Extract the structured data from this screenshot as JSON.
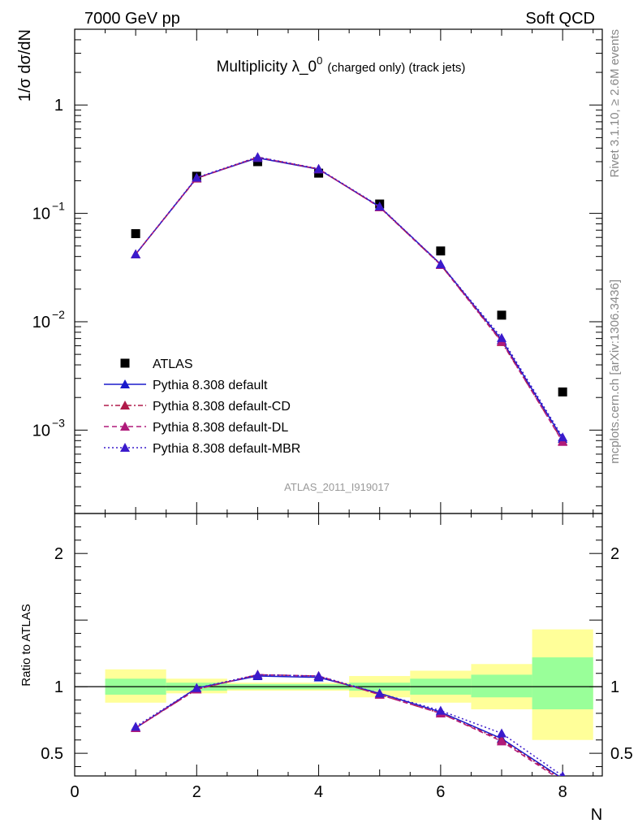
{
  "header": {
    "energy_label": "7000 GeV pp",
    "process_label": "Soft QCD"
  },
  "side_labels": {
    "rivet": "Rivet 3.1.10, ≥ 2.6M events",
    "source": "mcplots.cern.ch [arXiv:1306.3436]"
  },
  "chart_data": [
    {
      "type": "scatter",
      "title_main": "Multiplicity λ_0",
      "title_sup": "0",
      "title_sub": "(charged only) (track jets)",
      "ylabel": "1/σ dσ/dN",
      "y_scale": "log",
      "ylim": [
        0.00017,
        5.0
      ],
      "xlim": [
        0,
        8.65
      ],
      "watermark": "ATLAS_2011_I919017",
      "x": [
        1,
        2,
        3,
        4,
        5,
        6,
        7,
        8
      ],
      "legend_position": "lower-left",
      "series": [
        {
          "name": "ATLAS",
          "color": "#000000",
          "style": "marker-square",
          "values": [
            0.065,
            0.22,
            0.3,
            0.235,
            0.122,
            0.045,
            0.0115,
            0.00225
          ]
        },
        {
          "name": "Pythia 8.308 default",
          "color": "#1a1acc",
          "style": "solid",
          "values": [
            0.042,
            0.212,
            0.325,
            0.255,
            0.115,
            0.034,
            0.0068,
            0.00083
          ]
        },
        {
          "name": "Pythia 8.308 default-CD",
          "color": "#b01a4a",
          "style": "dashdot",
          "values": [
            0.042,
            0.21,
            0.33,
            0.257,
            0.114,
            0.0335,
            0.0065,
            0.00079
          ]
        },
        {
          "name": "Pythia 8.308 default-DL",
          "color": "#b01a7a",
          "style": "dashed",
          "values": [
            0.042,
            0.212,
            0.329,
            0.256,
            0.114,
            0.0335,
            0.0066,
            0.00078
          ]
        },
        {
          "name": "Pythia 8.308 default-MBR",
          "color": "#3a1acc",
          "style": "dotted",
          "values": [
            0.042,
            0.214,
            0.331,
            0.258,
            0.116,
            0.034,
            0.0071,
            0.00086
          ]
        }
      ],
      "y_tick_labels": [
        "10",
        "10",
        "10",
        "1"
      ],
      "y_tick_exponents": [
        "−3",
        "−2",
        "−1",
        ""
      ]
    },
    {
      "type": "line",
      "ylabel": "Ratio to ATLAS",
      "xlabel": "N",
      "ylim": [
        0.33,
        2.3
      ],
      "xlim": [
        0,
        8.65
      ],
      "x_tick_labels": [
        "0",
        "2",
        "4",
        "6",
        "8"
      ],
      "y_tick_labels": [
        "0.5",
        "1",
        "2"
      ],
      "reference_line": 1,
      "bands": {
        "bins": [
          [
            0.5,
            1.5
          ],
          [
            1.5,
            2.5
          ],
          [
            2.5,
            3.5
          ],
          [
            3.5,
            4.5
          ],
          [
            4.5,
            5.5
          ],
          [
            5.5,
            6.5
          ],
          [
            6.5,
            7.5
          ],
          [
            7.5,
            8.5
          ]
        ],
        "green": [
          [
            0.94,
            1.06
          ],
          [
            0.97,
            1.03
          ],
          [
            0.98,
            1.02
          ],
          [
            0.98,
            1.02
          ],
          [
            0.97,
            1.03
          ],
          [
            0.94,
            1.06
          ],
          [
            0.92,
            1.09
          ],
          [
            0.83,
            1.22
          ]
        ],
        "yellow": [
          [
            0.88,
            1.13
          ],
          [
            0.95,
            1.06
          ],
          [
            0.97,
            1.03
          ],
          [
            0.97,
            1.03
          ],
          [
            0.92,
            1.08
          ],
          [
            0.88,
            1.12
          ],
          [
            0.83,
            1.17
          ],
          [
            0.6,
            1.43
          ]
        ],
        "green_color": "#99ff99",
        "yellow_color": "#ffff99"
      },
      "series": [
        {
          "name": "Pythia 8.308 default",
          "color": "#1a1acc",
          "style": "solid",
          "values": [
            0.69,
            0.99,
            1.08,
            1.07,
            0.95,
            0.81,
            0.61,
            0.31
          ]
        },
        {
          "name": "Pythia 8.308 default-CD",
          "color": "#b01a4a",
          "style": "dashdot",
          "values": [
            0.69,
            0.98,
            1.09,
            1.08,
            0.94,
            0.8,
            0.6,
            0.3
          ]
        },
        {
          "name": "Pythia 8.308 default-DL",
          "color": "#b01a7a",
          "style": "dashed",
          "values": [
            0.69,
            0.98,
            1.09,
            1.08,
            0.94,
            0.8,
            0.59,
            0.29
          ]
        },
        {
          "name": "Pythia 8.308 default-MBR",
          "color": "#3a1acc",
          "style": "dotted",
          "values": [
            0.7,
            0.99,
            1.09,
            1.08,
            0.95,
            0.82,
            0.65,
            0.33
          ]
        }
      ]
    }
  ]
}
